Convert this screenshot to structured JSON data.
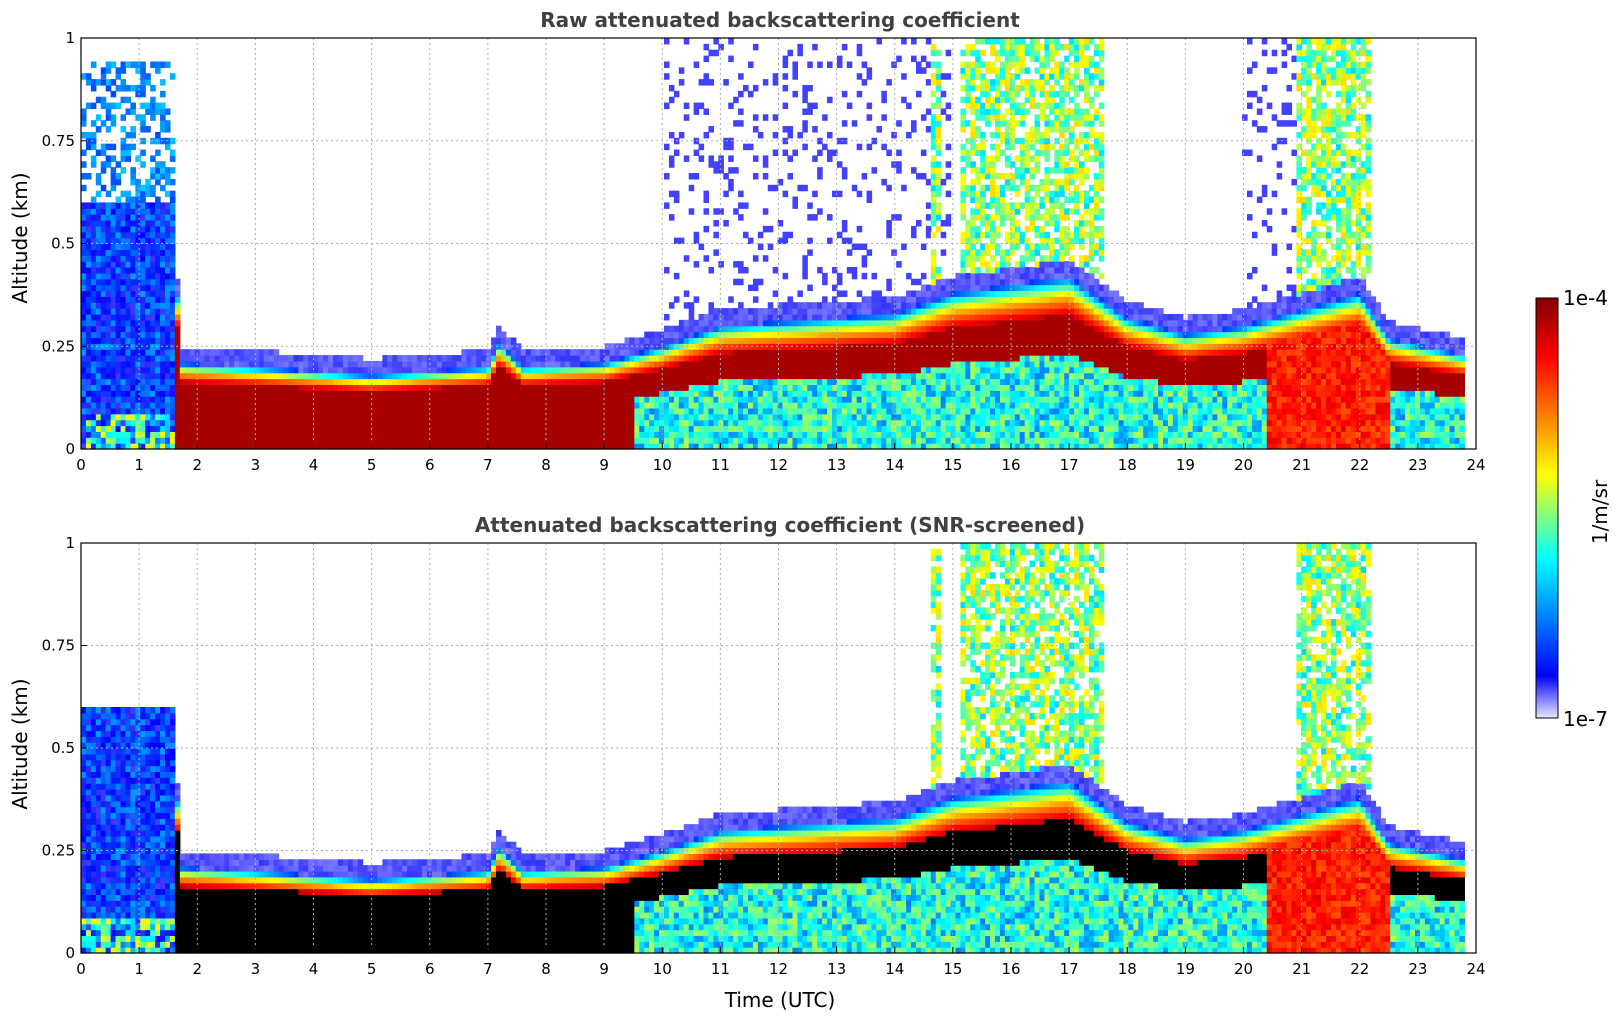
{
  "chart_data": [
    {
      "type": "heatmap",
      "title": "Raw attenuated backscattering coefficient",
      "xlabel": "",
      "ylabel": "Altitude (km)",
      "xlim": [
        0,
        24
      ],
      "ylim": [
        0,
        1
      ],
      "xticks": [
        "0",
        "1",
        "2",
        "3",
        "4",
        "5",
        "6",
        "7",
        "8",
        "9",
        "10",
        "11",
        "12",
        "13",
        "14",
        "15",
        "16",
        "17",
        "18",
        "19",
        "20",
        "21",
        "22",
        "23",
        "24"
      ],
      "yticks": [
        "0",
        "0.25",
        "0.5",
        "0.75",
        "1"
      ],
      "grid": true,
      "screened": false,
      "layer_top_km": [
        [
          0,
          0.6
        ],
        [
          1.6,
          0.6
        ],
        [
          1.7,
          0.21
        ],
        [
          3,
          0.2
        ],
        [
          5,
          0.18
        ],
        [
          7,
          0.2
        ],
        [
          7.2,
          0.26
        ],
        [
          7.6,
          0.2
        ],
        [
          9,
          0.21
        ],
        [
          10,
          0.25
        ],
        [
          11,
          0.3
        ],
        [
          13,
          0.32
        ],
        [
          14,
          0.33
        ],
        [
          15,
          0.38
        ],
        [
          17,
          0.42
        ],
        [
          18,
          0.32
        ],
        [
          19,
          0.28
        ],
        [
          20,
          0.3
        ],
        [
          21,
          0.34
        ],
        [
          22,
          0.38
        ],
        [
          22.5,
          0.27
        ],
        [
          23.8,
          0.23
        ]
      ],
      "colorbar_label": "1/m/sr",
      "colorbar_range": [
        "1e-7",
        "1e-4"
      ]
    },
    {
      "type": "heatmap",
      "title": "Attenuated backscattering coefficient (SNR-screened)",
      "xlabel": "Time (UTC)",
      "ylabel": "Altitude (km)",
      "xlim": [
        0,
        24
      ],
      "ylim": [
        0,
        1
      ],
      "xticks": [
        "0",
        "1",
        "2",
        "3",
        "4",
        "5",
        "6",
        "7",
        "8",
        "9",
        "10",
        "11",
        "12",
        "13",
        "14",
        "15",
        "16",
        "17",
        "18",
        "19",
        "20",
        "21",
        "22",
        "23",
        "24"
      ],
      "yticks": [
        "0",
        "0.25",
        "0.5",
        "0.75",
        "1"
      ],
      "grid": true,
      "screened": true,
      "layer_top_km": [
        [
          0,
          0.6
        ],
        [
          1.6,
          0.6
        ],
        [
          1.7,
          0.21
        ],
        [
          3,
          0.2
        ],
        [
          5,
          0.18
        ],
        [
          7,
          0.2
        ],
        [
          7.2,
          0.26
        ],
        [
          7.6,
          0.2
        ],
        [
          9,
          0.21
        ],
        [
          10,
          0.25
        ],
        [
          11,
          0.3
        ],
        [
          13,
          0.32
        ],
        [
          14,
          0.33
        ],
        [
          15,
          0.38
        ],
        [
          17,
          0.42
        ],
        [
          18,
          0.32
        ],
        [
          19,
          0.28
        ],
        [
          20,
          0.3
        ],
        [
          21,
          0.34
        ],
        [
          22,
          0.38
        ],
        [
          22.5,
          0.27
        ],
        [
          23.8,
          0.23
        ]
      ],
      "colorbar_label": "1/m/sr",
      "colorbar_range": [
        "1e-7",
        "1e-4"
      ]
    }
  ],
  "colors": {
    "colormap": [
      "#e8e8ff",
      "#0000ff",
      "#00ffff",
      "#ffff00",
      "#ff7f00",
      "#ff0000",
      "#800000"
    ],
    "screened_saturation": "#000000",
    "title": "#404040"
  }
}
